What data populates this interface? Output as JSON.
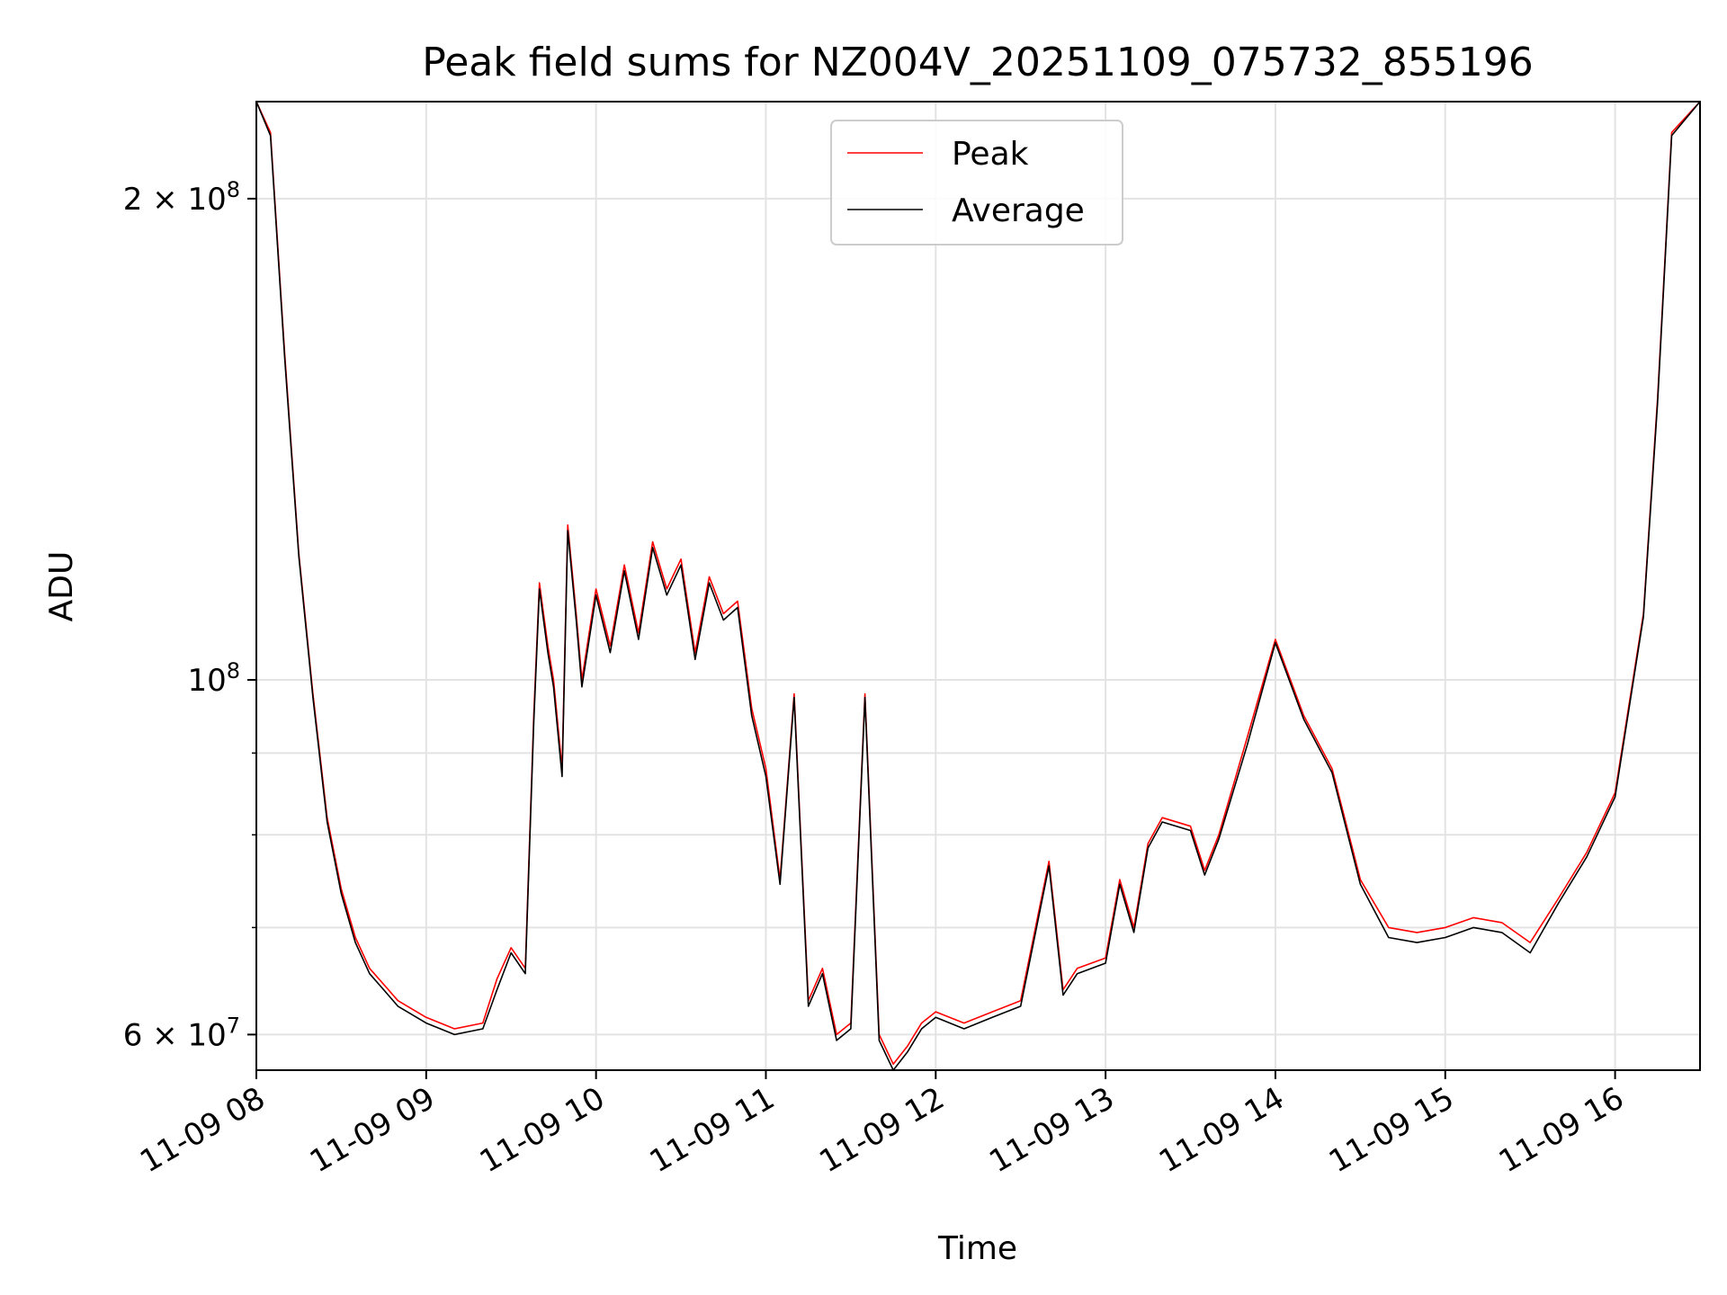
{
  "chart_data": {
    "type": "line",
    "title": "Peak field sums for NZ004V_20251109_075732_855196",
    "xlabel": "Time",
    "ylabel": "ADU",
    "yscale": "log",
    "xlim": [
      "2025-11-09 08:00",
      "2025-11-09 16:30"
    ],
    "ylim": [
      57000000,
      230000000
    ],
    "grid": true,
    "legend_position": "top-center",
    "x_ticks": [
      "2025-11-09 08:00",
      "2025-11-09 09:00",
      "2025-11-09 10:00",
      "2025-11-09 11:00",
      "2025-11-09 12:00",
      "2025-11-09 13:00",
      "2025-11-09 14:00",
      "2025-11-09 15:00",
      "2025-11-09 16:00"
    ],
    "x_tick_labels": [
      "11-09 08",
      "11-09 09",
      "11-09 10",
      "11-09 11",
      "11-09 12",
      "11-09 13",
      "11-09 14",
      "11-09 15",
      "11-09 16"
    ],
    "y_ticks": [
      60000000,
      100000000,
      200000000
    ],
    "y_tick_labels": [
      {
        "base": "6 × 10",
        "exp": "7"
      },
      {
        "base": "10",
        "exp": "8"
      },
      {
        "base": "2 × 10",
        "exp": "8"
      }
    ],
    "y_minor_ticks": [
      70000000,
      80000000,
      90000000
    ],
    "series": [
      {
        "name": "Peak",
        "color": "#ff0000",
        "x": [
          "08:00",
          "08:05",
          "08:10",
          "08:15",
          "08:20",
          "08:25",
          "08:30",
          "08:35",
          "08:40",
          "08:45",
          "08:50",
          "09:00",
          "09:10",
          "09:20",
          "09:25",
          "09:30",
          "09:35",
          "09:38",
          "09:40",
          "09:43",
          "09:45",
          "09:48",
          "09:50",
          "09:53",
          "09:55",
          "10:00",
          "10:05",
          "10:10",
          "10:15",
          "10:20",
          "10:25",
          "10:30",
          "10:35",
          "10:40",
          "10:45",
          "10:50",
          "10:55",
          "11:00",
          "11:05",
          "11:10",
          "11:15",
          "11:20",
          "11:25",
          "11:30",
          "11:35",
          "11:40",
          "11:45",
          "11:50",
          "11:55",
          "12:00",
          "12:10",
          "12:20",
          "12:30",
          "12:40",
          "12:45",
          "12:50",
          "13:00",
          "13:05",
          "13:10",
          "13:15",
          "13:20",
          "13:30",
          "13:35",
          "13:40",
          "13:50",
          "14:00",
          "14:10",
          "14:20",
          "14:30",
          "14:40",
          "14:50",
          "15:00",
          "15:10",
          "15:20",
          "15:30",
          "15:40",
          "15:50",
          "16:00",
          "16:10",
          "16:15",
          "16:20",
          "16:30"
        ],
        "y": [
          230000000,
          220000000,
          160000000,
          120000000,
          98000000,
          82000000,
          74000000,
          69000000,
          66000000,
          64500000,
          63000000,
          61500000,
          60500000,
          61000000,
          65000000,
          68000000,
          66000000,
          95000000,
          115000000,
          105000000,
          100000000,
          88000000,
          125000000,
          110000000,
          100000000,
          114000000,
          105000000,
          118000000,
          107000000,
          122000000,
          114000000,
          119000000,
          104000000,
          116000000,
          110000000,
          112000000,
          96000000,
          88000000,
          75000000,
          98000000,
          63000000,
          66000000,
          60000000,
          61000000,
          98000000,
          60000000,
          57500000,
          59000000,
          61000000,
          62000000,
          61000000,
          62000000,
          63000000,
          77000000,
          64000000,
          66000000,
          67000000,
          75000000,
          70000000,
          79000000,
          82000000,
          81000000,
          76000000,
          80000000,
          92000000,
          106000000,
          95000000,
          88000000,
          75000000,
          70000000,
          69500000,
          70000000,
          71000000,
          70500000,
          68500000,
          73000000,
          78000000,
          85000000,
          110000000,
          150000000,
          220000000,
          230000000
        ]
      },
      {
        "name": "Average",
        "color": "#000000",
        "x": [
          "08:00",
          "08:05",
          "08:10",
          "08:15",
          "08:20",
          "08:25",
          "08:30",
          "08:35",
          "08:40",
          "08:45",
          "08:50",
          "09:00",
          "09:10",
          "09:20",
          "09:25",
          "09:30",
          "09:35",
          "09:38",
          "09:40",
          "09:43",
          "09:45",
          "09:48",
          "09:50",
          "09:53",
          "09:55",
          "10:00",
          "10:05",
          "10:10",
          "10:15",
          "10:20",
          "10:25",
          "10:30",
          "10:35",
          "10:40",
          "10:45",
          "10:50",
          "10:55",
          "11:00",
          "11:05",
          "11:10",
          "11:15",
          "11:20",
          "11:25",
          "11:30",
          "11:35",
          "11:40",
          "11:45",
          "11:50",
          "11:55",
          "12:00",
          "12:10",
          "12:20",
          "12:30",
          "12:40",
          "12:45",
          "12:50",
          "13:00",
          "13:05",
          "13:10",
          "13:15",
          "13:20",
          "13:30",
          "13:35",
          "13:40",
          "13:50",
          "14:00",
          "14:10",
          "14:20",
          "14:30",
          "14:40",
          "14:50",
          "15:00",
          "15:10",
          "15:20",
          "15:30",
          "15:40",
          "15:50",
          "16:00",
          "16:10",
          "16:15",
          "16:20",
          "16:30"
        ],
        "y": [
          230000000,
          219000000,
          159000000,
          119500000,
          97500000,
          81500000,
          73500000,
          68500000,
          65500000,
          64000000,
          62500000,
          61000000,
          60000000,
          60500000,
          64000000,
          67500000,
          65500000,
          94000000,
          114000000,
          104000000,
          99000000,
          87000000,
          124000000,
          109000000,
          99000000,
          113000000,
          104000000,
          117000000,
          106000000,
          121000000,
          113000000,
          118000000,
          103000000,
          115000000,
          109000000,
          111000000,
          95000000,
          87000000,
          74500000,
          97500000,
          62500000,
          65500000,
          59500000,
          60500000,
          97500000,
          59500000,
          57000000,
          58500000,
          60500000,
          61500000,
          60500000,
          61500000,
          62500000,
          76500000,
          63500000,
          65500000,
          66500000,
          74500000,
          69500000,
          78500000,
          81500000,
          80500000,
          75500000,
          79500000,
          91000000,
          105500000,
          94500000,
          87500000,
          74500000,
          69000000,
          68500000,
          69000000,
          70000000,
          69500000,
          67500000,
          72500000,
          77500000,
          84500000,
          109500000,
          149000000,
          219000000,
          230000000
        ]
      }
    ]
  }
}
